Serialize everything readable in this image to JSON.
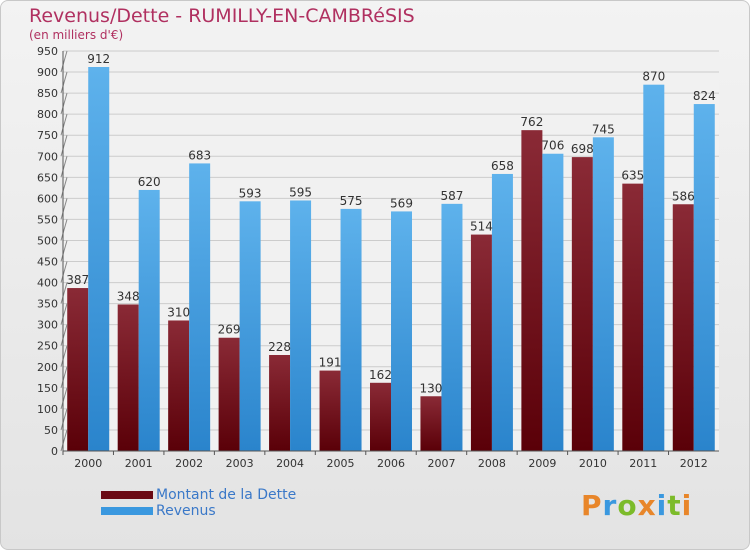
{
  "title": "Revenus/Dette - RUMILLY-EN-CAMBRéSIS",
  "subtitle": "(en milliers d'€)",
  "logo_text": "Proxiti",
  "colors": {
    "dette": "#6b0a14",
    "revenus": "#3a98df",
    "grid": "#cccccc",
    "axis_text": "#333333",
    "title": "#b03060"
  },
  "chart_data": {
    "type": "bar",
    "title": "Revenus/Dette - RUMILLY-EN-CAMBRéSIS",
    "ylabel": "(en milliers d'€)",
    "xlabel": "",
    "ylim": [
      0,
      950
    ],
    "yticks": [
      0,
      50,
      100,
      150,
      200,
      250,
      300,
      350,
      400,
      450,
      500,
      550,
      600,
      650,
      700,
      750,
      800,
      850,
      900,
      950
    ],
    "grid": true,
    "legend_position": "bottom-left",
    "categories": [
      "2000",
      "2001",
      "2002",
      "2003",
      "2004",
      "2005",
      "2006",
      "2007",
      "2008",
      "2009",
      "2010",
      "2011",
      "2012"
    ],
    "series": [
      {
        "name": "Montant de la Dette",
        "values": [
          387,
          348,
          310,
          269,
          228,
          191,
          162,
          130,
          514,
          762,
          698,
          635,
          586
        ]
      },
      {
        "name": "Revenus",
        "values": [
          912,
          620,
          683,
          593,
          595,
          575,
          569,
          587,
          658,
          706,
          745,
          870,
          824
        ]
      }
    ]
  }
}
